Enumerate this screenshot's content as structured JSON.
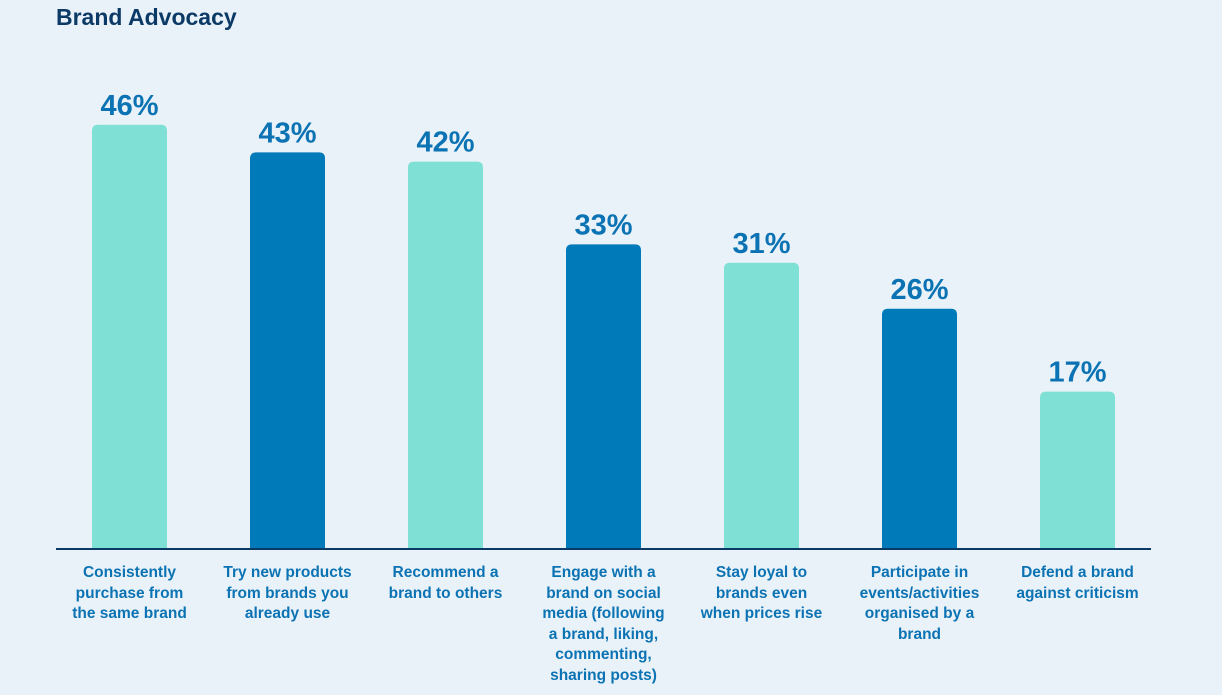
{
  "title": "Brand Advocacy",
  "colors": {
    "background": "#eaf2f9",
    "bar_light": "#7fe1d5",
    "bar_dark": "#007ab8",
    "value_label": "#0b73b3",
    "axis": "#0c3a66",
    "title": "#0c3a66"
  },
  "chart_data": {
    "type": "bar",
    "title": "Brand Advocacy",
    "categories": [
      "Consistently purchase from the same brand",
      "Try new products from brands you already use",
      "Recommend a brand to others",
      "Engage with a brand on social media (following a brand, liking, commenting, sharing posts)",
      "Stay loyal to brands even when prices rise",
      "Participate in events/activities organised by a brand",
      "Defend a brand against criticism"
    ],
    "category_lines": [
      [
        "Consistently",
        "purchase from",
        "the same brand"
      ],
      [
        "Try new products",
        "from brands you",
        "already use"
      ],
      [
        "Recommend a",
        "brand to others"
      ],
      [
        "Engage with a",
        "brand on social",
        "media (following",
        "a brand, liking,",
        "commenting,",
        "sharing posts)"
      ],
      [
        "Stay loyal to",
        "brands even",
        "when prices rise"
      ],
      [
        "Participate in",
        "events/activities",
        "organised by a",
        "brand"
      ],
      [
        "Defend a brand",
        "against criticism"
      ]
    ],
    "values": [
      46,
      43,
      42,
      33,
      31,
      26,
      17
    ],
    "value_labels": [
      "46%",
      "43%",
      "42%",
      "33%",
      "31%",
      "26%",
      "17%"
    ],
    "bar_colors": [
      "#7fe1d5",
      "#007ab8",
      "#7fe1d5",
      "#007ab8",
      "#7fe1d5",
      "#007ab8",
      "#7fe1d5"
    ],
    "unit": "%",
    "ylim": [
      0,
      50
    ],
    "grid": false,
    "legend": "none",
    "xlabel": "",
    "ylabel": ""
  }
}
